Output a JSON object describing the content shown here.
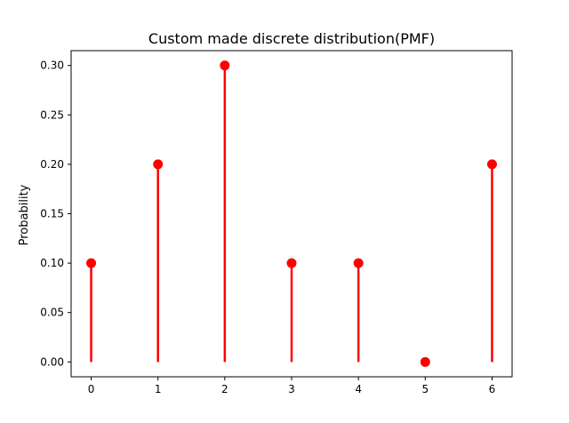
{
  "chart_data": {
    "type": "stem",
    "title": "Custom made discrete distribution(PMF)",
    "xlabel": "",
    "ylabel": "Probability",
    "x": [
      0,
      1,
      2,
      3,
      4,
      5,
      6
    ],
    "values": [
      0.1,
      0.2,
      0.3,
      0.1,
      0.1,
      0.0,
      0.2
    ],
    "xlim": [
      -0.3,
      6.3
    ],
    "ylim": [
      -0.015,
      0.315
    ],
    "xticks": [
      "0",
      "1",
      "2",
      "3",
      "4",
      "5",
      "6"
    ],
    "yticks": [
      "0.00",
      "0.05",
      "0.10",
      "0.15",
      "0.20",
      "0.25",
      "0.30"
    ],
    "grid": false,
    "legend": "none",
    "colors": {
      "stem": "#ff0000",
      "marker": "#ff0000"
    }
  }
}
